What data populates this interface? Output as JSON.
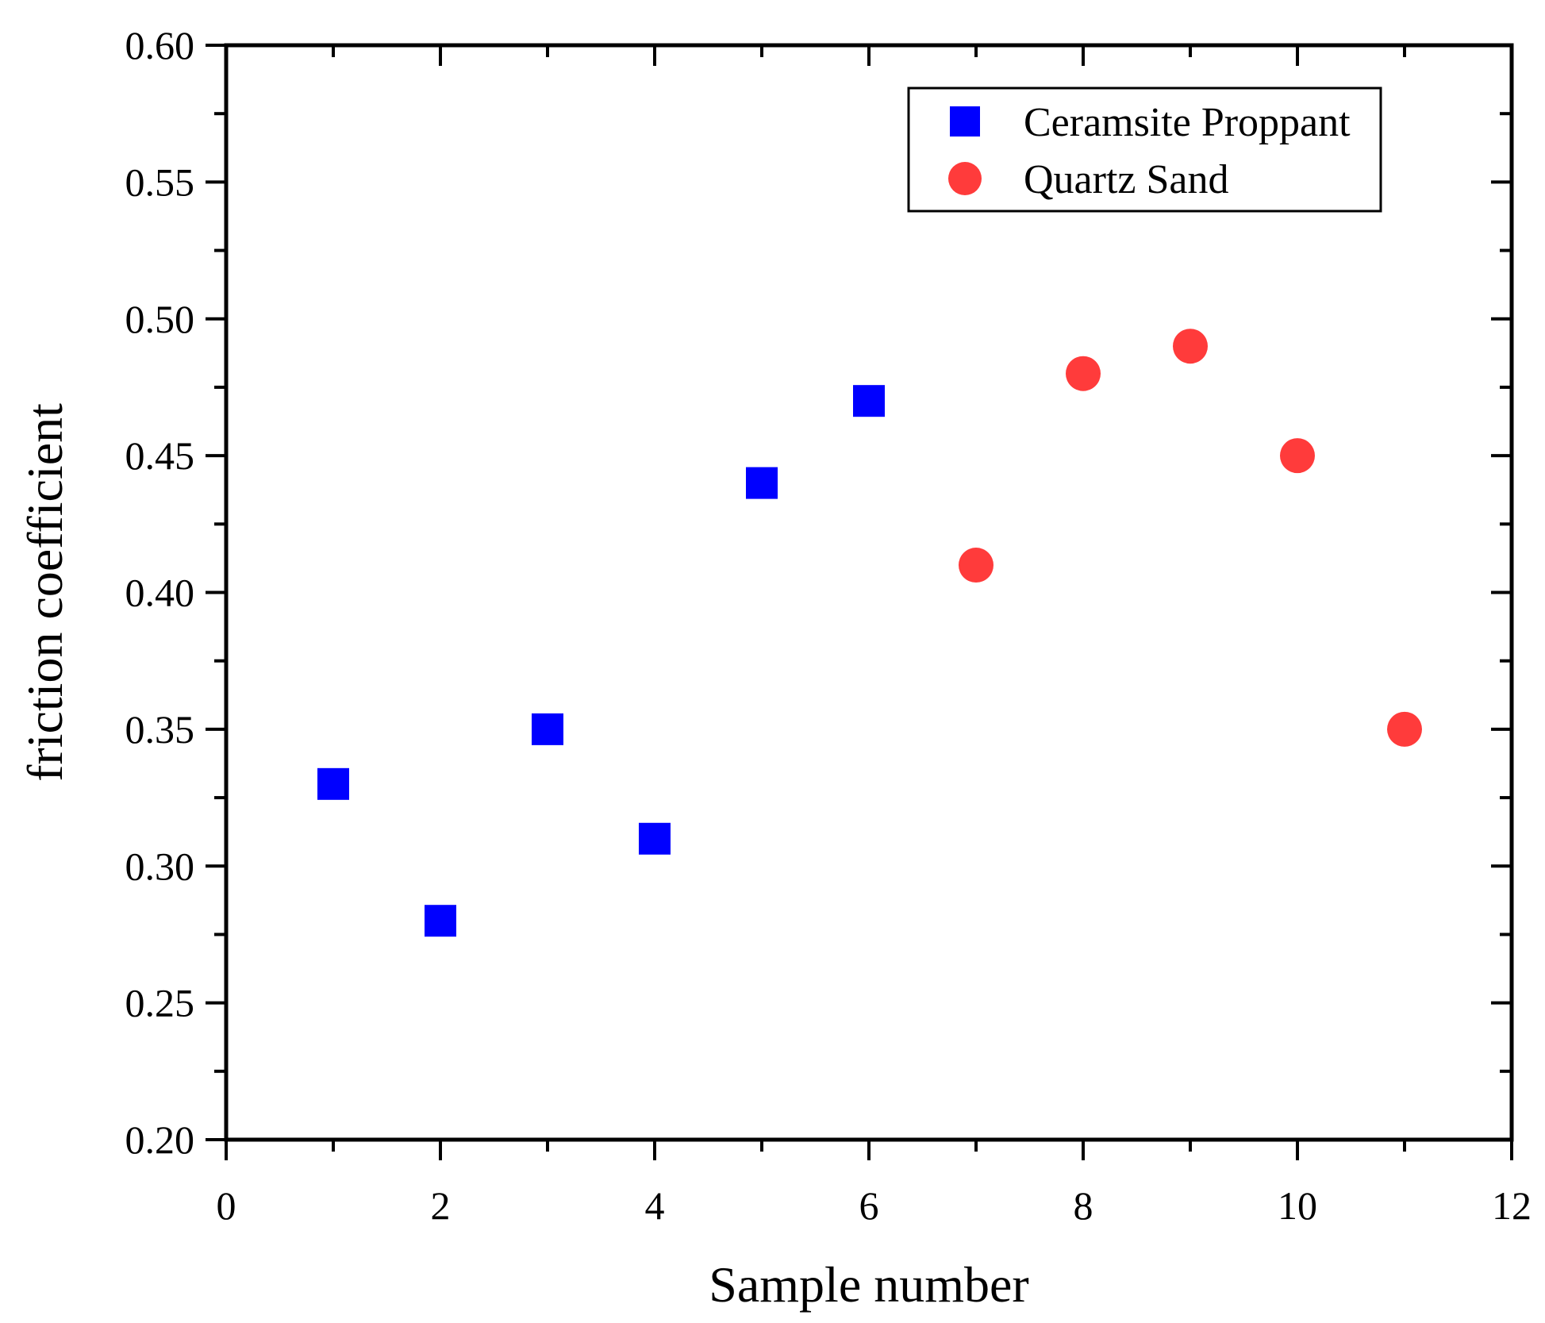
{
  "chart_data": {
    "type": "scatter",
    "title": "",
    "xlabel": "Sample number",
    "ylabel": "friction coefficient",
    "xlim": [
      0,
      12
    ],
    "ylim": [
      0.2,
      0.6
    ],
    "xticks": [
      0,
      2,
      4,
      6,
      8,
      10,
      12
    ],
    "xtick_labels": [
      "0",
      "2",
      "4",
      "6",
      "8",
      "10",
      "12"
    ],
    "yticks": [
      0.2,
      0.25,
      0.3,
      0.35,
      0.4,
      0.45,
      0.5,
      0.55,
      0.6
    ],
    "ytick_labels": [
      "0.20",
      "0.25",
      "0.30",
      "0.35",
      "0.40",
      "0.45",
      "0.50",
      "0.55",
      "0.60"
    ],
    "grid": false,
    "legend_position": "top-right",
    "series": [
      {
        "name": "Ceramsite Proppant",
        "marker": "square",
        "color": "#0000ff",
        "x": [
          1,
          2,
          3,
          4,
          5,
          6
        ],
        "y": [
          0.33,
          0.28,
          0.35,
          0.31,
          0.44,
          0.47
        ]
      },
      {
        "name": "Quartz Sand",
        "marker": "circle",
        "color": "#ff3b3b",
        "x": [
          7,
          8,
          9,
          10,
          11
        ],
        "y": [
          0.41,
          0.48,
          0.49,
          0.45,
          0.35
        ]
      }
    ]
  }
}
